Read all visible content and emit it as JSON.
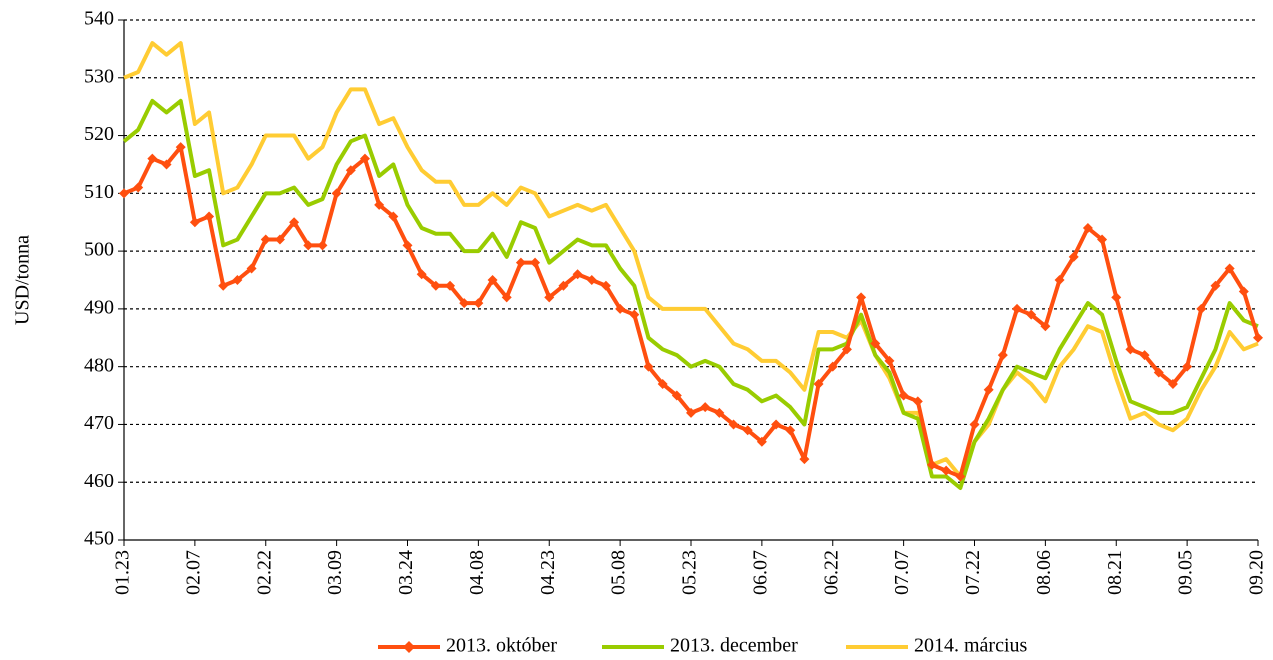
{
  "chart_data": {
    "type": "line",
    "y_label": "USD/tonna",
    "categories": [
      "01.23",
      null,
      null,
      null,
      null,
      "02.07",
      null,
      null,
      null,
      null,
      "02.22",
      null,
      null,
      null,
      null,
      "03.09",
      null,
      null,
      null,
      null,
      "03.24",
      null,
      null,
      null,
      null,
      "04.08",
      null,
      null,
      null,
      null,
      "04.23",
      null,
      null,
      null,
      null,
      "05.08",
      null,
      null,
      null,
      null,
      "05.23",
      null,
      null,
      null,
      null,
      "06.07",
      null,
      null,
      null,
      null,
      "06.22",
      null,
      null,
      null,
      null,
      "07.07",
      null,
      null,
      null,
      null,
      "07.22",
      null,
      null,
      null,
      null,
      "08.06",
      null,
      null,
      null,
      null,
      "08.21",
      null,
      null,
      null,
      null,
      "09.05",
      null,
      null,
      null,
      null,
      "09.20"
    ],
    "series": [
      {
        "name": "2013. október",
        "color": "#ff4f0f",
        "marker": "diamond",
        "values": [
          510,
          511,
          516,
          515,
          518,
          505,
          506,
          494,
          495,
          497,
          502,
          502,
          505,
          501,
          501,
          510,
          514,
          516,
          508,
          506,
          501,
          496,
          494,
          494,
          491,
          491,
          495,
          492,
          498,
          498,
          492,
          494,
          496,
          495,
          494,
          490,
          489,
          480,
          477,
          475,
          472,
          473,
          472,
          470,
          469,
          467,
          470,
          469,
          464,
          477,
          480,
          483,
          492,
          484,
          481,
          475,
          474,
          463,
          462,
          461,
          470,
          476,
          482,
          490,
          489,
          487,
          495,
          499,
          504,
          502,
          492,
          483,
          482,
          479,
          477,
          480,
          490,
          494,
          497,
          493,
          485
        ]
      },
      {
        "name": "2013. december",
        "color": "#99cc00",
        "values": [
          519,
          521,
          526,
          524,
          526,
          513,
          514,
          501,
          502,
          506,
          510,
          510,
          511,
          508,
          509,
          515,
          519,
          520,
          513,
          515,
          508,
          504,
          503,
          503,
          500,
          500,
          503,
          499,
          505,
          504,
          498,
          500,
          502,
          501,
          501,
          497,
          494,
          485,
          483,
          482,
          480,
          481,
          480,
          477,
          476,
          474,
          475,
          473,
          470,
          483,
          483,
          484,
          489,
          482,
          479,
          472,
          471,
          461,
          461,
          459,
          467,
          471,
          476,
          480,
          479,
          478,
          483,
          487,
          491,
          489,
          481,
          474,
          473,
          472,
          472,
          473,
          478,
          483,
          491,
          488,
          487
        ]
      },
      {
        "name": "2014. március",
        "color": "#ffcc33",
        "values": [
          530,
          531,
          536,
          534,
          536,
          522,
          524,
          510,
          511,
          515,
          520,
          520,
          520,
          516,
          518,
          524,
          528,
          528,
          522,
          523,
          518,
          514,
          512,
          512,
          508,
          508,
          510,
          508,
          511,
          510,
          506,
          507,
          508,
          507,
          508,
          504,
          500,
          492,
          490,
          490,
          490,
          490,
          487,
          484,
          483,
          481,
          481,
          479,
          476,
          486,
          486,
          485,
          488,
          482,
          478,
          472,
          472,
          463,
          464,
          461,
          467,
          470,
          476,
          479,
          477,
          474,
          480,
          483,
          487,
          486,
          478,
          471,
          472,
          470,
          469,
          471,
          476,
          480,
          486,
          483,
          484
        ]
      }
    ],
    "ylim": [
      450,
      540
    ],
    "yticks": [
      450,
      460,
      470,
      480,
      490,
      500,
      510,
      520,
      530,
      540
    ],
    "grid": true,
    "legend": "bottom"
  }
}
